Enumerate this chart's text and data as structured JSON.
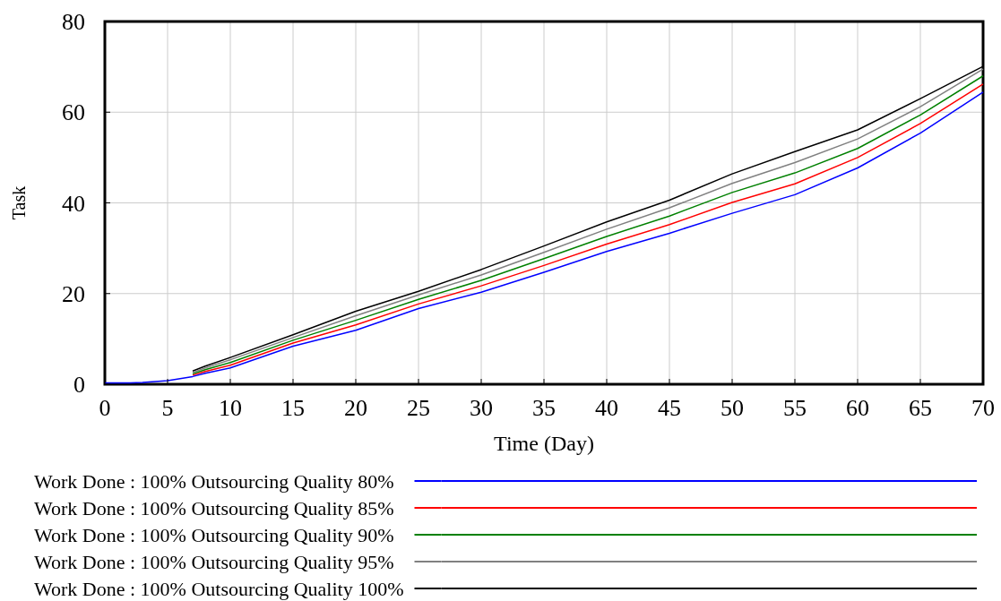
{
  "chart_data": {
    "type": "line",
    "xlabel": "Time (Day)",
    "ylabel": "Task",
    "x": [
      0,
      2,
      3,
      5,
      7,
      8,
      10,
      15,
      20,
      25,
      30,
      35,
      40,
      45,
      50,
      55,
      60,
      65,
      70
    ],
    "series": [
      {
        "name": "Work Done : 100% Outsourcing Quality 80%",
        "color": "#0000ff",
        "values": [
          0.3,
          0.3,
          0.4,
          0.8,
          1.7,
          2.4,
          3.6,
          8.4,
          11.9,
          16.7,
          20.3,
          24.7,
          29.3,
          33.3,
          37.7,
          41.8,
          47.7,
          55.4,
          64.4
        ]
      },
      {
        "name": "Work Done : 100% Outsourcing Quality 85%",
        "color": "#ff0000",
        "values": [
          null,
          null,
          null,
          null,
          2,
          2.8,
          4.2,
          9.1,
          13.1,
          17.7,
          21.7,
          26.2,
          30.9,
          35.2,
          40.1,
          44.2,
          50,
          57.5,
          66.2
        ]
      },
      {
        "name": "Work Done : 100% Outsourcing Quality 90%",
        "color": "#008000",
        "values": [
          null,
          null,
          null,
          null,
          2.3,
          3.2,
          4.8,
          9.7,
          14.1,
          18.7,
          22.9,
          27.7,
          32.6,
          37.1,
          42.3,
          46.6,
          52,
          59.4,
          68
        ]
      },
      {
        "name": "Work Done : 100% Outsourcing Quality 95%",
        "color": "#808080",
        "values": [
          null,
          null,
          null,
          null,
          2.6,
          3.6,
          5.4,
          10.3,
          15.1,
          19.7,
          24.1,
          29.1,
          34.2,
          38.9,
          44.3,
          48.9,
          54.1,
          61.2,
          69.5
        ]
      },
      {
        "name": "Work Done : 100% Outsourcing Quality 100%",
        "color": "#000000",
        "values": [
          null,
          null,
          null,
          null,
          2.9,
          4,
          5.9,
          10.9,
          16.1,
          20.5,
          25.3,
          30.5,
          35.8,
          40.6,
          46.4,
          51.3,
          56.1,
          63,
          70.1
        ]
      }
    ],
    "xlim": [
      0,
      70
    ],
    "xticks": [
      0,
      5,
      10,
      15,
      20,
      25,
      30,
      35,
      40,
      45,
      50,
      55,
      60,
      65,
      70
    ],
    "ylim": [
      0,
      80
    ],
    "yticks": [
      0,
      20,
      40,
      60,
      80
    ],
    "grid": true,
    "legend": "bottom",
    "marker": "none",
    "line_style": "solid"
  }
}
